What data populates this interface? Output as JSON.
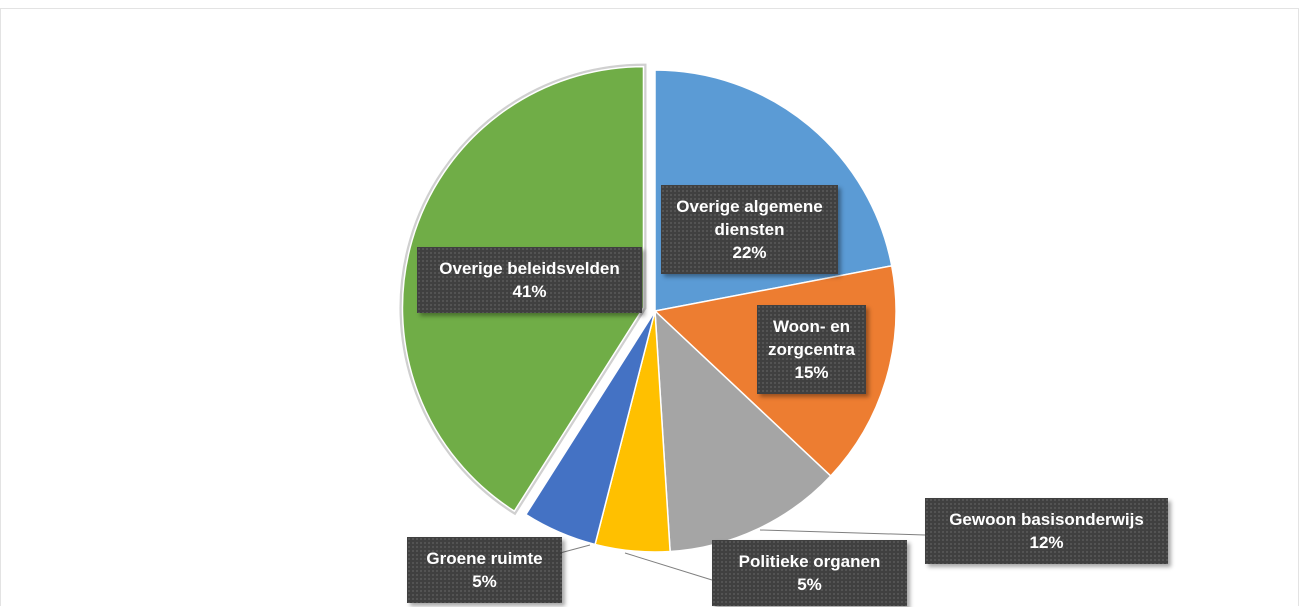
{
  "chart_data": {
    "type": "pie",
    "categories": [
      "Overige algemene diensten",
      "Woon- en zorgcentra",
      "Gewoon basisonderwijs",
      "Politieke organen",
      "Groene ruimte",
      "Overige beleidsvelden"
    ],
    "values": [
      22,
      15,
      12,
      5,
      5,
      41
    ],
    "value_labels": [
      "22%",
      "15%",
      "12%",
      "5%",
      "5%",
      "41%"
    ],
    "colors": [
      "#5b9bd5",
      "#ed7d31",
      "#a5a5a5",
      "#ffc000",
      "#4472c4",
      "#70ad47"
    ],
    "exploded": [
      "Overige beleidsvelden"
    ]
  }
}
